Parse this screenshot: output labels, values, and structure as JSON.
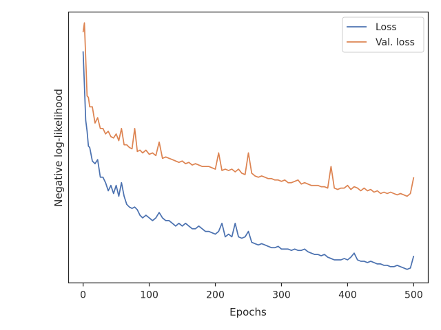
{
  "chart_data": {
    "type": "line",
    "xlabel": "Epochs",
    "ylabel": "Negative log-likelihood",
    "xlim": [
      -22,
      522
    ],
    "ylim": [
      0,
      100
    ],
    "x_ticks": [
      0,
      100,
      200,
      300,
      400,
      500
    ],
    "y_ticks_shown": false,
    "legend_position": "top-right",
    "series": [
      {
        "name": "Loss",
        "color": "#4c72b0",
        "x": [
          0,
          2,
          4,
          6,
          8,
          10,
          14,
          18,
          22,
          26,
          30,
          34,
          38,
          42,
          46,
          50,
          54,
          58,
          62,
          66,
          70,
          74,
          78,
          82,
          86,
          90,
          95,
          100,
          105,
          110,
          115,
          120,
          125,
          130,
          135,
          140,
          145,
          150,
          155,
          160,
          165,
          170,
          175,
          180,
          185,
          190,
          195,
          200,
          205,
          210,
          215,
          220,
          225,
          230,
          235,
          240,
          245,
          250,
          255,
          260,
          265,
          270,
          275,
          280,
          285,
          290,
          295,
          300,
          305,
          310,
          315,
          320,
          325,
          330,
          335,
          340,
          345,
          350,
          355,
          360,
          365,
          370,
          375,
          380,
          385,
          390,
          395,
          400,
          405,
          410,
          415,
          420,
          425,
          430,
          435,
          440,
          445,
          450,
          455,
          460,
          465,
          470,
          475,
          480,
          485,
          490,
          495,
          500
        ],
        "values": [
          85.5,
          73,
          60,
          56,
          50.5,
          50,
          45,
          44,
          45.5,
          39,
          39,
          37,
          34,
          36,
          33,
          36,
          32,
          37,
          32,
          29,
          28,
          27.5,
          28,
          27,
          25,
          24,
          25,
          24,
          23,
          24,
          26,
          24,
          23,
          23,
          22,
          21,
          22,
          21,
          22,
          21,
          20,
          20,
          21,
          20,
          19,
          19,
          18.5,
          18,
          19,
          22,
          17,
          18,
          17,
          22,
          17,
          16.5,
          17,
          19,
          15,
          14.5,
          14,
          14.5,
          14,
          13.5,
          13,
          13,
          13.5,
          12.5,
          12.5,
          12.5,
          12,
          12.5,
          12,
          12,
          12.5,
          11.5,
          11,
          10.5,
          10.5,
          10,
          10.5,
          9.5,
          9,
          8.5,
          8.5,
          8.5,
          9,
          8.5,
          9.5,
          11,
          8.5,
          8,
          8,
          7.5,
          8,
          7.5,
          7,
          7,
          6.5,
          6.5,
          6,
          6,
          6.5,
          6,
          5.5,
          5,
          5.5,
          10
        ]
      },
      {
        "name": "Val. loss",
        "color": "#dd8452",
        "x": [
          0,
          2,
          4,
          6,
          8,
          10,
          14,
          18,
          22,
          26,
          30,
          34,
          38,
          42,
          46,
          50,
          54,
          58,
          62,
          66,
          70,
          74,
          78,
          82,
          86,
          90,
          95,
          100,
          105,
          110,
          115,
          120,
          125,
          130,
          135,
          140,
          145,
          150,
          155,
          160,
          165,
          170,
          175,
          180,
          185,
          190,
          195,
          200,
          205,
          210,
          215,
          220,
          225,
          230,
          235,
          240,
          245,
          250,
          255,
          260,
          265,
          270,
          275,
          280,
          285,
          290,
          295,
          300,
          305,
          310,
          315,
          320,
          325,
          330,
          335,
          340,
          345,
          350,
          355,
          360,
          365,
          370,
          375,
          380,
          385,
          390,
          395,
          400,
          405,
          410,
          415,
          420,
          425,
          430,
          435,
          440,
          445,
          450,
          455,
          460,
          465,
          470,
          475,
          480,
          485,
          490,
          495,
          500
        ],
        "values": [
          92.5,
          96,
          83,
          69,
          68.5,
          65,
          65,
          59,
          61,
          57,
          57,
          55,
          56,
          54,
          53.5,
          55,
          52.5,
          57,
          51,
          51,
          50,
          49.5,
          57,
          48.5,
          49,
          48,
          49,
          47.5,
          48,
          47,
          52,
          46,
          46.5,
          46,
          45.5,
          45,
          44.5,
          45,
          44,
          44.5,
          43.5,
          44,
          43.5,
          43,
          43,
          43,
          42.5,
          42,
          48,
          41.5,
          42,
          41.5,
          42,
          41,
          42,
          40.5,
          40,
          48,
          40.5,
          39.5,
          39,
          39.5,
          39,
          38.5,
          38.5,
          38,
          38,
          37.5,
          38,
          37,
          37,
          37.5,
          38,
          36.5,
          37,
          36.5,
          36,
          36,
          36,
          35.5,
          35.5,
          35,
          43,
          35,
          34.5,
          35,
          35,
          36,
          34.5,
          35.5,
          35,
          34,
          35,
          34,
          34.5,
          33.5,
          34,
          33,
          33.5,
          33,
          33.5,
          33,
          32.5,
          33,
          32.5,
          32,
          33,
          39
        ]
      }
    ]
  }
}
